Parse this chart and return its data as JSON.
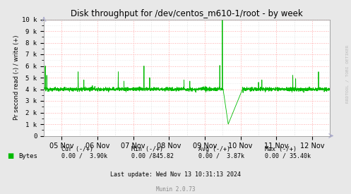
{
  "title": "Disk throughput for /dev/centos_m610-1/root - by week",
  "ylabel": "Pr second read (-) / write (+)",
  "background_color": "#e8e8e8",
  "plot_bg_color": "#ffffff",
  "grid_color_major": "#ffaaaa",
  "grid_color_minor": "#dddddd",
  "line_color": "#00bb00",
  "ylim": [
    0,
    10000
  ],
  "yticks": [
    0,
    1000,
    2000,
    3000,
    4000,
    5000,
    6000,
    7000,
    8000,
    9000,
    10000
  ],
  "ytick_labels": [
    "0",
    "1 k",
    "2 k",
    "3 k",
    "4 k",
    "5 k",
    "6 k",
    "7 k",
    "8 k",
    "9 k",
    "10 k"
  ],
  "xlabel_dates": [
    "05 Nov",
    "06 Nov",
    "07 Nov",
    "08 Nov",
    "09 Nov",
    "10 Nov",
    "11 Nov",
    "12 Nov"
  ],
  "legend_label": "Bytes",
  "legend_color": "#00bb00",
  "watermark": "RRDTOOL / TOBI OETIKER",
  "footer_munin": "Munin 2.0.73",
  "footer_update": "Last update: Wed Nov 13 10:31:13 2024"
}
